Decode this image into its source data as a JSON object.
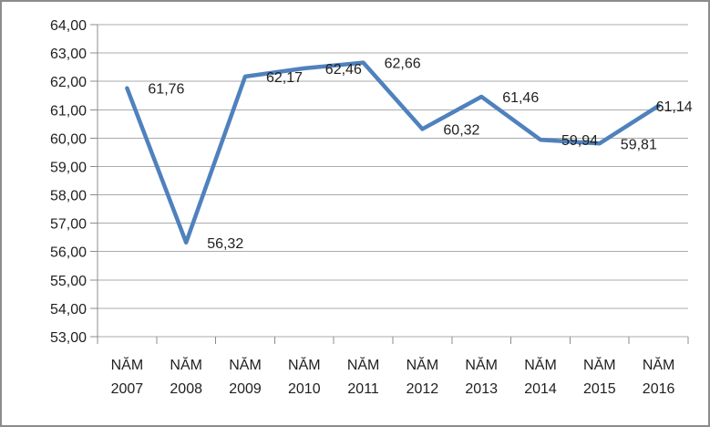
{
  "chart_data": {
    "type": "line",
    "title": "",
    "xlabel": "",
    "ylabel": "",
    "categories": [
      "NĂM 2007",
      "NĂM 2008",
      "NĂM 2009",
      "NĂM 2010",
      "NĂM 2011",
      "NĂM 2012",
      "NĂM 2013",
      "NĂM 2014",
      "NĂM 2015",
      "NĂM 2016"
    ],
    "values": [
      61.76,
      56.32,
      62.17,
      62.46,
      62.66,
      60.32,
      61.46,
      59.94,
      59.81,
      61.14
    ],
    "data_labels": [
      "61,76",
      "56,32",
      "62,17",
      "62,46",
      "62,66",
      "60,32",
      "61,46",
      "59,94",
      "59,81",
      "61,14"
    ],
    "y_tick_values": [
      53,
      54,
      55,
      56,
      57,
      58,
      59,
      60,
      61,
      62,
      63,
      64
    ],
    "y_tick_labels": [
      "53,00",
      "54,00",
      "55,00",
      "56,00",
      "57,00",
      "58,00",
      "59,00",
      "60,00",
      "61,00",
      "62,00",
      "63,00",
      "64,00"
    ],
    "ylim": [
      53,
      64
    ],
    "grid": true,
    "legend": "none",
    "series_name": "",
    "series_color": "#4F81BD"
  },
  "colors": {
    "line": "#4F81BD",
    "gridline": "#ABABAB",
    "axis": "#8C8C8C",
    "text": "#1F1F1F",
    "frame_border": "#8C8C8C",
    "background": "#FFFFFF"
  }
}
